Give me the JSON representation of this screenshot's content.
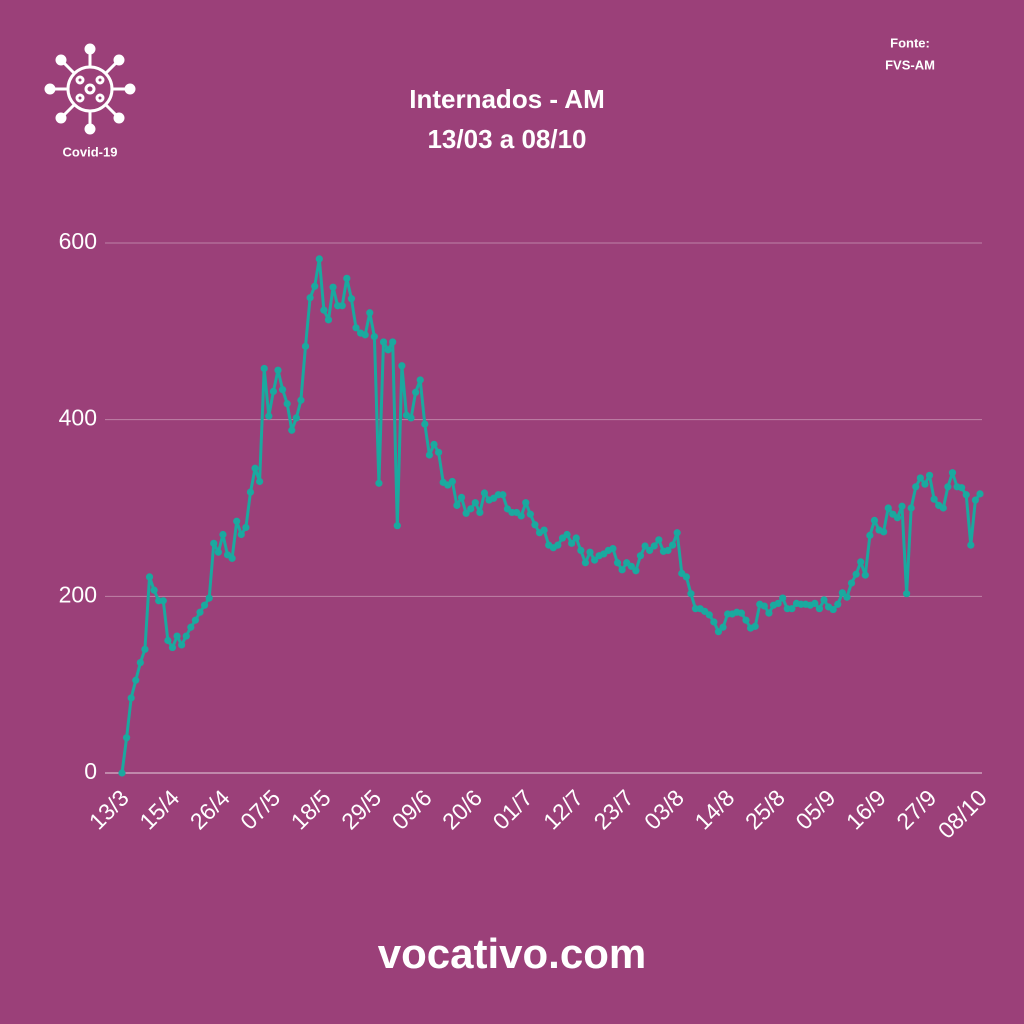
{
  "chart_data": {
    "type": "line",
    "title": "Internados - AM",
    "subtitle": "13/03 a 08/10",
    "source": [
      "Fonte:",
      "FVS-AM"
    ],
    "logo_label": "Covid-19",
    "footer": "vocativo.com",
    "color": "#1aa99f",
    "grid": true,
    "ylim": [
      0,
      600
    ],
    "yticks": [
      0,
      200,
      400,
      600
    ],
    "categories": [
      "13/3",
      null,
      null,
      null,
      null,
      null,
      null,
      null,
      null,
      null,
      null,
      "15/4",
      null,
      null,
      null,
      null,
      null,
      null,
      null,
      null,
      null,
      null,
      "26/4",
      null,
      null,
      null,
      null,
      null,
      null,
      null,
      null,
      null,
      null,
      "07/5",
      null,
      null,
      null,
      null,
      null,
      null,
      null,
      null,
      null,
      null,
      "18/5",
      null,
      null,
      null,
      null,
      null,
      null,
      null,
      null,
      null,
      null,
      "29/5",
      null,
      null,
      null,
      null,
      null,
      null,
      null,
      null,
      null,
      null,
      "09/6",
      null,
      null,
      null,
      null,
      null,
      null,
      null,
      null,
      null,
      null,
      "20/6",
      null,
      null,
      null,
      null,
      null,
      null,
      null,
      null,
      null,
      null,
      "01/7",
      null,
      null,
      null,
      null,
      null,
      null,
      null,
      null,
      null,
      null,
      "12/7",
      null,
      null,
      null,
      null,
      null,
      null,
      null,
      null,
      null,
      null,
      "23/7",
      null,
      null,
      null,
      null,
      null,
      null,
      null,
      null,
      null,
      null,
      "03/8",
      null,
      null,
      null,
      null,
      null,
      null,
      null,
      null,
      null,
      null,
      "14/8",
      null,
      null,
      null,
      null,
      null,
      null,
      null,
      null,
      null,
      null,
      "25/8",
      null,
      null,
      null,
      null,
      null,
      null,
      null,
      null,
      null,
      null,
      "05/9",
      null,
      null,
      null,
      null,
      null,
      null,
      null,
      null,
      null,
      null,
      "16/9",
      null,
      null,
      null,
      null,
      null,
      null,
      null,
      null,
      null,
      null,
      "27/9",
      null,
      null,
      null,
      null,
      null,
      null,
      null,
      null,
      null,
      null,
      "08/10"
    ],
    "values": [
      0,
      40,
      85,
      105,
      125,
      140,
      222,
      207,
      195,
      195,
      150,
      142,
      155,
      145,
      155,
      165,
      173,
      182,
      190,
      198,
      260,
      250,
      270,
      247,
      243,
      285,
      270,
      278,
      318,
      345,
      330,
      458,
      404,
      432,
      456,
      434,
      418,
      388,
      402,
      422,
      483,
      538,
      551,
      582,
      524,
      513,
      550,
      529,
      529,
      560,
      537,
      504,
      498,
      496,
      521,
      494,
      328,
      488,
      479,
      488,
      280,
      461,
      405,
      402,
      431,
      445,
      395,
      360,
      372,
      363,
      329,
      326,
      330,
      303,
      312,
      294,
      299,
      306,
      295,
      317,
      309,
      311,
      315,
      315,
      299,
      295,
      295,
      291,
      306,
      293,
      281,
      272,
      275,
      258,
      255,
      258,
      266,
      270,
      260,
      266,
      252,
      238,
      250,
      241,
      246,
      248,
      252,
      254,
      238,
      230,
      238,
      234,
      229,
      246,
      257,
      252,
      257,
      264,
      251,
      252,
      258,
      272,
      226,
      222,
      203,
      186,
      186,
      183,
      179,
      171,
      160,
      165,
      180,
      180,
      182,
      181,
      173,
      164,
      166,
      191,
      189,
      181,
      190,
      192,
      198,
      186,
      186,
      192,
      191,
      191,
      190,
      192,
      186,
      196,
      188,
      185,
      191,
      204,
      199,
      215,
      225,
      239,
      224,
      269,
      286,
      275,
      273,
      300,
      293,
      289,
      302,
      203,
      300,
      324,
      334,
      327,
      337,
      310,
      303,
      300,
      324,
      340,
      324,
      323,
      315,
      258,
      309,
      316
    ]
  }
}
